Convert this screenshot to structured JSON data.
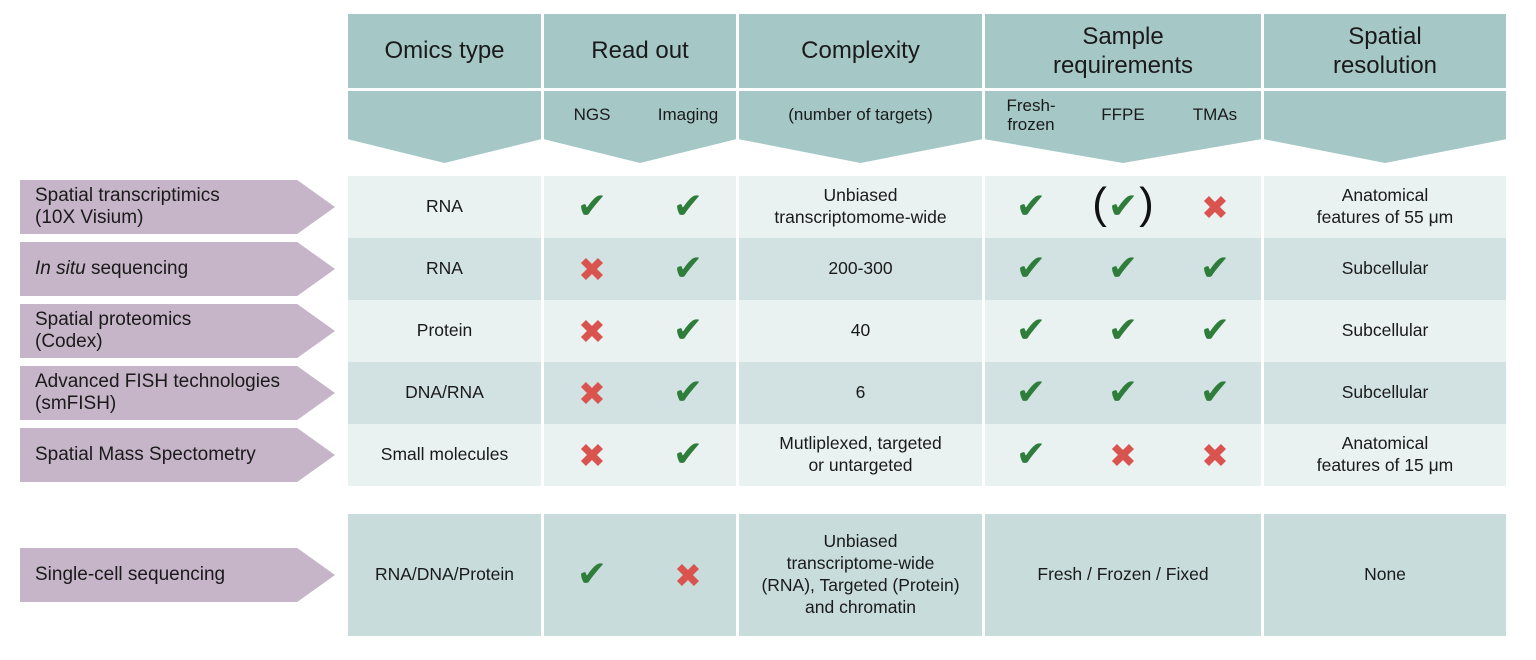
{
  "colors": {
    "header_teal": "#a5c8c7",
    "row_light": "#e9f1f1",
    "row_dark": "#d2e2e2",
    "bottom_row": "#c8dcdc",
    "arrow_purple": "#c6b4c8",
    "check_green": "#2e7d3b",
    "cross_red": "#d9534f"
  },
  "marks": {
    "check": "✔",
    "cross": "✖"
  },
  "columns": {
    "omics": {
      "title_lines": [
        "Omics type"
      ]
    },
    "readout": {
      "title_lines": [
        "Read out"
      ]
    },
    "complexity": {
      "title_lines": [
        "Complexity"
      ]
    },
    "sample": {
      "title_lines": [
        "Sample",
        "requirements"
      ]
    },
    "resolution": {
      "title_lines": [
        "Spatial",
        "resolution"
      ]
    }
  },
  "subheaders": {
    "ngs": "NGS",
    "imaging": "Imaging",
    "complexity": "(number of targets)",
    "fresh_lines": [
      "Fresh-",
      "frozen"
    ],
    "ffpe": "FFPE",
    "tmas": "TMAs"
  },
  "rows": [
    {
      "label": {
        "segments": [
          {
            "text": "Spatial transcriptimics"
          },
          {
            "text": "(10X Visium)",
            "newline": true
          }
        ]
      },
      "omics": "RNA",
      "ngs": "check",
      "imaging": "check",
      "complexity_lines": [
        "Unbiased",
        "transcriptomome-wide"
      ],
      "fresh": "check",
      "ffpe": "check-paren",
      "tmas": "cross",
      "resolution_lines": [
        "Anatomical",
        "features of 55 μm"
      ]
    },
    {
      "label": {
        "segments": [
          {
            "text": "In situ",
            "italic": true
          },
          {
            "text": " sequencing"
          }
        ]
      },
      "omics": "RNA",
      "ngs": "cross",
      "imaging": "check",
      "complexity_lines": [
        "200-300"
      ],
      "fresh": "check",
      "ffpe": "check",
      "tmas": "check",
      "resolution_lines": [
        "Subcellular"
      ]
    },
    {
      "label": {
        "segments": [
          {
            "text": "Spatial proteomics"
          },
          {
            "text": "(Codex)",
            "newline": true
          }
        ]
      },
      "omics": "Protein",
      "ngs": "cross",
      "imaging": "check",
      "complexity_lines": [
        "40"
      ],
      "fresh": "check",
      "ffpe": "check",
      "tmas": "check",
      "resolution_lines": [
        "Subcellular"
      ]
    },
    {
      "label": {
        "segments": [
          {
            "text": "Advanced FISH technologies"
          },
          {
            "text": "(smFISH)",
            "newline": true
          }
        ]
      },
      "omics": "DNA/RNA",
      "ngs": "cross",
      "imaging": "check",
      "complexity_lines": [
        "6"
      ],
      "fresh": "check",
      "ffpe": "check",
      "tmas": "check",
      "resolution_lines": [
        "Subcellular"
      ]
    },
    {
      "label": {
        "segments": [
          {
            "text": "Spatial Mass Spectometry"
          }
        ]
      },
      "omics": "Small molecules",
      "ngs": "cross",
      "imaging": "check",
      "complexity_lines": [
        "Mutliplexed, targeted",
        "or untargeted"
      ],
      "fresh": "check",
      "ffpe": "cross",
      "tmas": "cross",
      "resolution_lines": [
        "Anatomical",
        "features of 15 μm"
      ]
    }
  ],
  "bottom_row": {
    "label": {
      "segments": [
        {
          "text": "Single-cell sequencing"
        }
      ]
    },
    "omics": "RNA/DNA/Protein",
    "ngs": "check",
    "imaging": "cross",
    "complexity_lines": [
      "Unbiased",
      "transcriptome-wide",
      "(RNA), Targeted (Protein)",
      "and chromatin"
    ],
    "sample": "Fresh / Frozen / Fixed",
    "resolution_lines": [
      "None"
    ]
  }
}
